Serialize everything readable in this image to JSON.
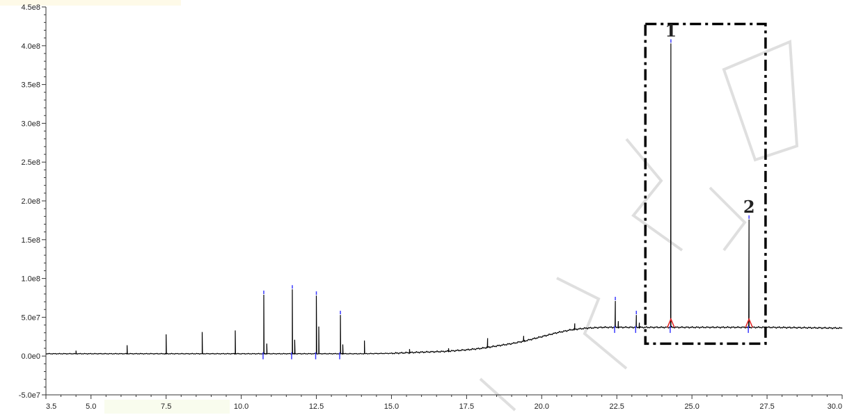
{
  "chart_data": {
    "type": "line",
    "title": "",
    "xlabel": "",
    "ylabel": "",
    "xlim": [
      3.5,
      30.0
    ],
    "ylim": [
      -50000000.0,
      450000000.0
    ],
    "x_ticks": [
      3.5,
      5.0,
      7.5,
      10.0,
      12.5,
      15.0,
      17.5,
      20.0,
      22.5,
      25.0,
      27.5,
      30.0
    ],
    "x_tick_labels": [
      "3.5",
      "5.0",
      "7.5",
      "10.0",
      "12.5",
      "15.0",
      "17.5",
      "20.0",
      "22.5",
      "25.0",
      "27.5",
      "30.0"
    ],
    "y_ticks": [
      -50000000.0,
      0,
      50000000.0,
      100000000.0,
      150000000.0,
      200000000.0,
      250000000.0,
      300000000.0,
      350000000.0,
      400000000.0,
      450000000.0
    ],
    "y_tick_labels": [
      "-5.0e7",
      "0.0e0",
      "5.0e7",
      "1.0e8",
      "1.5e8",
      "2.0e8",
      "2.5e8",
      "3.0e8",
      "3.5e8",
      "4.0e8",
      "4.5e8"
    ],
    "baseline": [
      [
        3.5,
        3000000.0
      ],
      [
        5.0,
        3000000.0
      ],
      [
        7.5,
        3000000.0
      ],
      [
        10.0,
        3000000.0
      ],
      [
        12.5,
        3000000.0
      ],
      [
        14.0,
        3000000.0
      ],
      [
        15.0,
        3500000.0
      ],
      [
        16.0,
        5000000.0
      ],
      [
        16.8,
        6000000.0
      ],
      [
        17.5,
        8000000.0
      ],
      [
        18.0,
        10000000.0
      ],
      [
        18.5,
        13000000.0
      ],
      [
        19.0,
        16000000.0
      ],
      [
        19.5,
        20000000.0
      ],
      [
        20.0,
        25000000.0
      ],
      [
        20.5,
        30000000.0
      ],
      [
        21.0,
        34000000.0
      ],
      [
        21.5,
        36000000.0
      ],
      [
        22.0,
        37000000.0
      ],
      [
        23.0,
        37000000.0
      ],
      [
        25.0,
        37000000.0
      ],
      [
        27.5,
        37000000.0
      ],
      [
        30.0,
        36000000.0
      ]
    ],
    "peaks": [
      {
        "x": 4.5,
        "y": 7000000.0
      },
      {
        "x": 6.2,
        "y": 14000000.0
      },
      {
        "x": 7.5,
        "y": 28000000.0
      },
      {
        "x": 8.7,
        "y": 31000000.0
      },
      {
        "x": 9.8,
        "y": 33000000.0
      },
      {
        "x": 10.75,
        "y": 79000000.0
      },
      {
        "x": 10.85,
        "y": 16000000.0
      },
      {
        "x": 11.7,
        "y": 86000000.0
      },
      {
        "x": 11.78,
        "y": 21000000.0
      },
      {
        "x": 12.5,
        "y": 78000000.0
      },
      {
        "x": 12.58,
        "y": 38000000.0
      },
      {
        "x": 13.3,
        "y": 53000000.0
      },
      {
        "x": 13.38,
        "y": 15000000.0
      },
      {
        "x": 14.1,
        "y": 20000000.0
      },
      {
        "x": 15.6,
        "y": 9000000.0
      },
      {
        "x": 16.9,
        "y": 10000000.0
      },
      {
        "x": 18.2,
        "y": 23000000.0
      },
      {
        "x": 19.4,
        "y": 26000000.0
      },
      {
        "x": 21.1,
        "y": 42000000.0
      },
      {
        "x": 22.45,
        "y": 71000000.0
      },
      {
        "x": 22.55,
        "y": 45000000.0
      },
      {
        "x": 23.15,
        "y": 53000000.0
      },
      {
        "x": 23.25,
        "y": 43000000.0
      },
      {
        "x": 24.3,
        "y": 403000000.0
      },
      {
        "x": 26.9,
        "y": 176000000.0
      }
    ],
    "annotations": [
      {
        "text": "1",
        "x": 24.3,
        "y": 410000000.0
      },
      {
        "text": "2",
        "x": 26.9,
        "y": 183000000.0
      }
    ],
    "highlight_box": {
      "x0": 23.45,
      "x1": 27.45,
      "y0": 16000000.0,
      "y1": 428000000.0
    },
    "colors": {
      "line": "#000000",
      "marker_blue": "#3a3aff",
      "marker_red": "#e02020",
      "box": "#000000",
      "axis": "#333333",
      "watermark": "#b3b3b3"
    }
  }
}
